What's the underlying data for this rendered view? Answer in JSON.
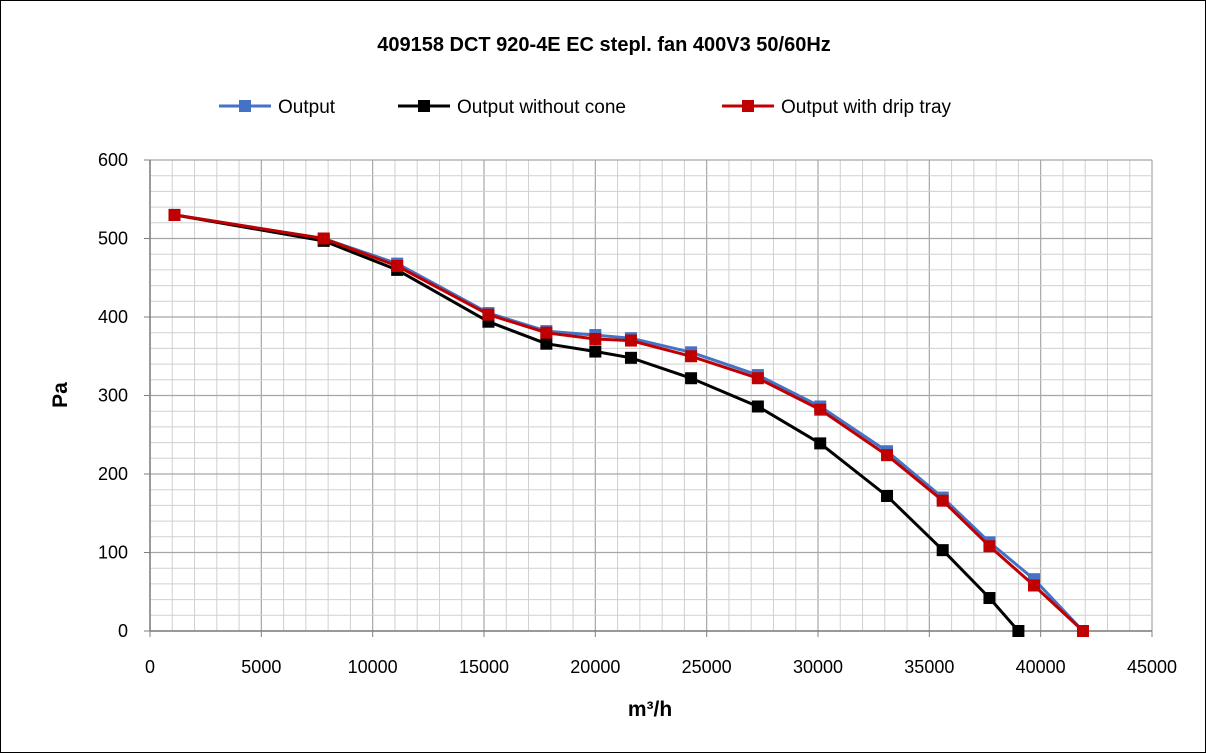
{
  "chart_data": {
    "type": "line",
    "title": "409158 DCT 920-4E EC stepl. fan 400V3 50/60Hz",
    "xlabel": "m³/h",
    "ylabel": "Pa",
    "xlim": [
      0,
      45000
    ],
    "ylim": [
      0,
      600
    ],
    "x_ticks": [
      0,
      5000,
      10000,
      15000,
      20000,
      25000,
      30000,
      35000,
      40000,
      45000
    ],
    "y_ticks": [
      0,
      100,
      200,
      300,
      400,
      500,
      600
    ],
    "grid": true,
    "legend_position": "top",
    "series": [
      {
        "name": "Output",
        "color": "#4472C4",
        "x": [
          1100,
          7800,
          11100,
          15200,
          17800,
          20000,
          21600,
          24300,
          27300,
          30100,
          33100,
          35600,
          37700,
          39700,
          41900
        ],
        "y": [
          530,
          500,
          468,
          405,
          382,
          377,
          373,
          355,
          326,
          286,
          229,
          170,
          113,
          66,
          0
        ]
      },
      {
        "name": "Output without cone",
        "color": "#000000",
        "x": [
          1100,
          7800,
          11100,
          15200,
          17800,
          20000,
          21600,
          24300,
          27300,
          30100,
          33100,
          35600,
          37700,
          39000
        ],
        "y": [
          530,
          497,
          460,
          394,
          366,
          356,
          348,
          322,
          286,
          239,
          172,
          103,
          42,
          0
        ]
      },
      {
        "name": "Output with drip tray",
        "color": "#C00000",
        "x": [
          1100,
          7800,
          11100,
          15200,
          17800,
          20000,
          21600,
          24300,
          27300,
          30100,
          33100,
          35600,
          37700,
          39700,
          41900
        ],
        "y": [
          530,
          500,
          465,
          403,
          380,
          372,
          370,
          350,
          322,
          282,
          224,
          166,
          108,
          58,
          0
        ]
      }
    ]
  }
}
